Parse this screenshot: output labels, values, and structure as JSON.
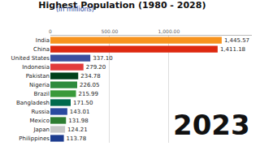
{
  "chart_data": {
    "type": "bar",
    "orientation": "horizontal",
    "title": "Highest Population (1980 - 2028)",
    "subtitle": "(in millions)",
    "annotations": [
      "2023"
    ],
    "categories": [
      "India",
      "China",
      "United States",
      "Indonesia",
      "Pakistan",
      "Nigeria",
      "Brazil",
      "Bangladesh",
      "Russia",
      "Mexico",
      "Japan",
      "Philippines"
    ],
    "values": [
      1445.57,
      1411.18,
      337.1,
      279.2,
      234.78,
      226.05,
      215.99,
      171.5,
      143.01,
      131.98,
      124.21,
      113.78
    ],
    "value_labels": [
      "1,445.57",
      "1,411.18",
      "337.10",
      "279.20",
      "234.78",
      "226.05",
      "215.99",
      "171.50",
      "143.01",
      "131.98",
      "124.21",
      "113.78"
    ],
    "colors": [
      "#f7931e",
      "#de2910",
      "#3c4f9e",
      "#e23b3b",
      "#01411c",
      "#2e8b3e",
      "#3a9a3a",
      "#006a4e",
      "#2a4aa0",
      "#2e7d32",
      "#c8c8c8",
      "#1d3c8f"
    ],
    "data_labels": true,
    "xlim": [
      0,
      1700
    ],
    "xticks": [
      0,
      {
        "value": 500,
        "label": "500.00"
      },
      {
        "value": 1000,
        "label": "1,000.00"
      }
    ],
    "grid": true
  }
}
